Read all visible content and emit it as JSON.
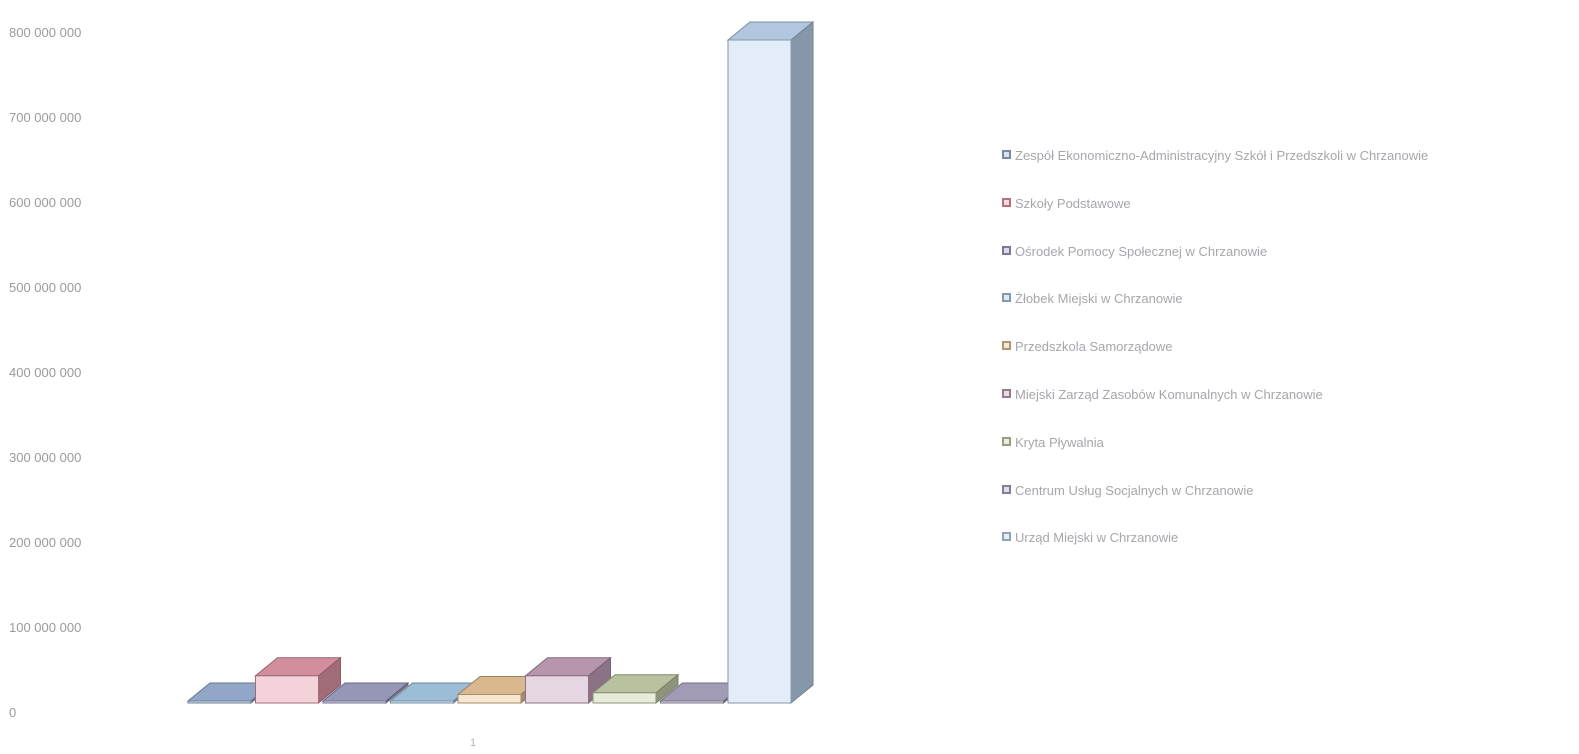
{
  "chart_data": {
    "type": "bar",
    "categories": [
      "1"
    ],
    "ylim": [
      0,
      800000000
    ],
    "yticks": [
      0,
      100000000,
      200000000,
      300000000,
      400000000,
      500000000,
      600000000,
      700000000,
      800000000
    ],
    "ytick_labels": [
      "0",
      "100 000 000",
      "200 000 000",
      "300 000 000",
      "400 000 000",
      "500 000 000",
      "600 000 000",
      "700 000 000",
      "800 000 000"
    ],
    "grid": false,
    "legend_position": "right",
    "series": [
      {
        "name": "Zespół Ekonomiczno-Administracyjny Szkół i Przedszkoli w Chrzanowie",
        "values": [
          0
        ],
        "color": "#9fb6d8"
      },
      {
        "name": "Szkoły Podstawowe",
        "values": [
          32000000
        ],
        "color": "#e59aab"
      },
      {
        "name": "Ośrodek Pomocy Społecznej w Chrzanowie",
        "values": [
          0
        ],
        "color": "#a2a3c8"
      },
      {
        "name": "Żłobek Miejski w Chrzanowie",
        "values": [
          0
        ],
        "color": "#a9cde9"
      },
      {
        "name": "Przedszkola Samorządowe",
        "values": [
          10000000
        ],
        "color": "#ecc89a"
      },
      {
        "name": "Miejski Zarząd Zasobów Komunalnych w Chrzanowie",
        "values": [
          32000000
        ],
        "color": "#c7a3bc"
      },
      {
        "name": "Kryta Pływalnia",
        "values": [
          12000000
        ],
        "color": "#c8d3ad"
      },
      {
        "name": "Centrum Usług Socjalnych w Chrzanowie",
        "values": [
          0
        ],
        "color": "#b1a7c6"
      },
      {
        "name": "Urząd Miejski w Chrzanowie",
        "values": [
          780000000
        ],
        "color": "#bfd8f2"
      }
    ]
  }
}
